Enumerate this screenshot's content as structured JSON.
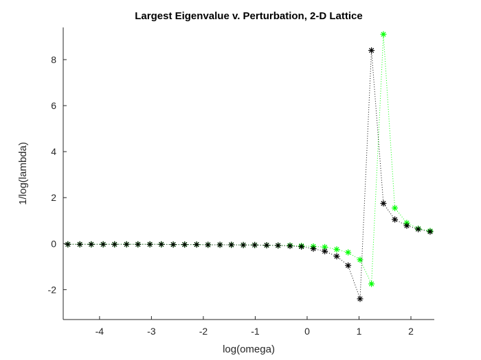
{
  "chart_data": {
    "type": "line",
    "title": "Largest Eigenvalue v. Perturbation, 2-D Lattice",
    "xlabel": "log(omega)",
    "ylabel": "1/log(lambda)",
    "xlim": [
      -4.7,
      2.45
    ],
    "ylim": [
      -3.3,
      9.4
    ],
    "xticks": [
      -4,
      -3,
      -2,
      -1,
      0,
      1,
      2
    ],
    "yticks": [
      -2,
      0,
      2,
      4,
      6,
      8
    ],
    "grid": false,
    "legend": "none",
    "series": [
      {
        "color": "#00ff00",
        "line_style": "dotted",
        "marker": "asterisk",
        "x": [
          -4.61,
          -4.38,
          -4.16,
          -3.93,
          -3.71,
          -3.48,
          -3.26,
          -3.03,
          -2.81,
          -2.58,
          -2.36,
          -2.13,
          -1.91,
          -1.68,
          -1.46,
          -1.23,
          -1.01,
          -0.78,
          -0.56,
          -0.33,
          -0.11,
          0.12,
          0.34,
          0.57,
          0.79,
          1.02,
          1.24,
          1.47,
          1.69,
          1.92,
          2.14,
          2.37
        ],
        "values": [
          -0.03,
          -0.03,
          -0.03,
          -0.03,
          -0.03,
          -0.03,
          -0.03,
          -0.03,
          -0.03,
          -0.04,
          -0.04,
          -0.04,
          -0.05,
          -0.05,
          -0.05,
          -0.06,
          -0.06,
          -0.07,
          -0.08,
          -0.08,
          -0.1,
          -0.12,
          -0.15,
          -0.25,
          -0.38,
          -0.7,
          -1.75,
          9.1,
          1.55,
          0.9,
          0.65,
          0.55
        ]
      },
      {
        "color": "#000000",
        "line_style": "dotted",
        "marker": "asterisk",
        "x": [
          -4.61,
          -4.38,
          -4.16,
          -3.93,
          -3.71,
          -3.48,
          -3.26,
          -3.03,
          -2.81,
          -2.58,
          -2.36,
          -2.13,
          -1.91,
          -1.68,
          -1.46,
          -1.23,
          -1.01,
          -0.78,
          -0.56,
          -0.33,
          -0.11,
          0.12,
          0.34,
          0.57,
          0.79,
          1.02,
          1.24,
          1.47,
          1.69,
          1.92,
          2.14,
          2.37
        ],
        "values": [
          -0.03,
          -0.03,
          -0.03,
          -0.03,
          -0.03,
          -0.03,
          -0.03,
          -0.03,
          -0.03,
          -0.04,
          -0.04,
          -0.04,
          -0.05,
          -0.05,
          -0.05,
          -0.06,
          -0.06,
          -0.07,
          -0.08,
          -0.1,
          -0.13,
          -0.22,
          -0.33,
          -0.55,
          -0.95,
          -2.4,
          8.4,
          1.75,
          1.05,
          0.78,
          0.63,
          0.52
        ]
      }
    ]
  }
}
